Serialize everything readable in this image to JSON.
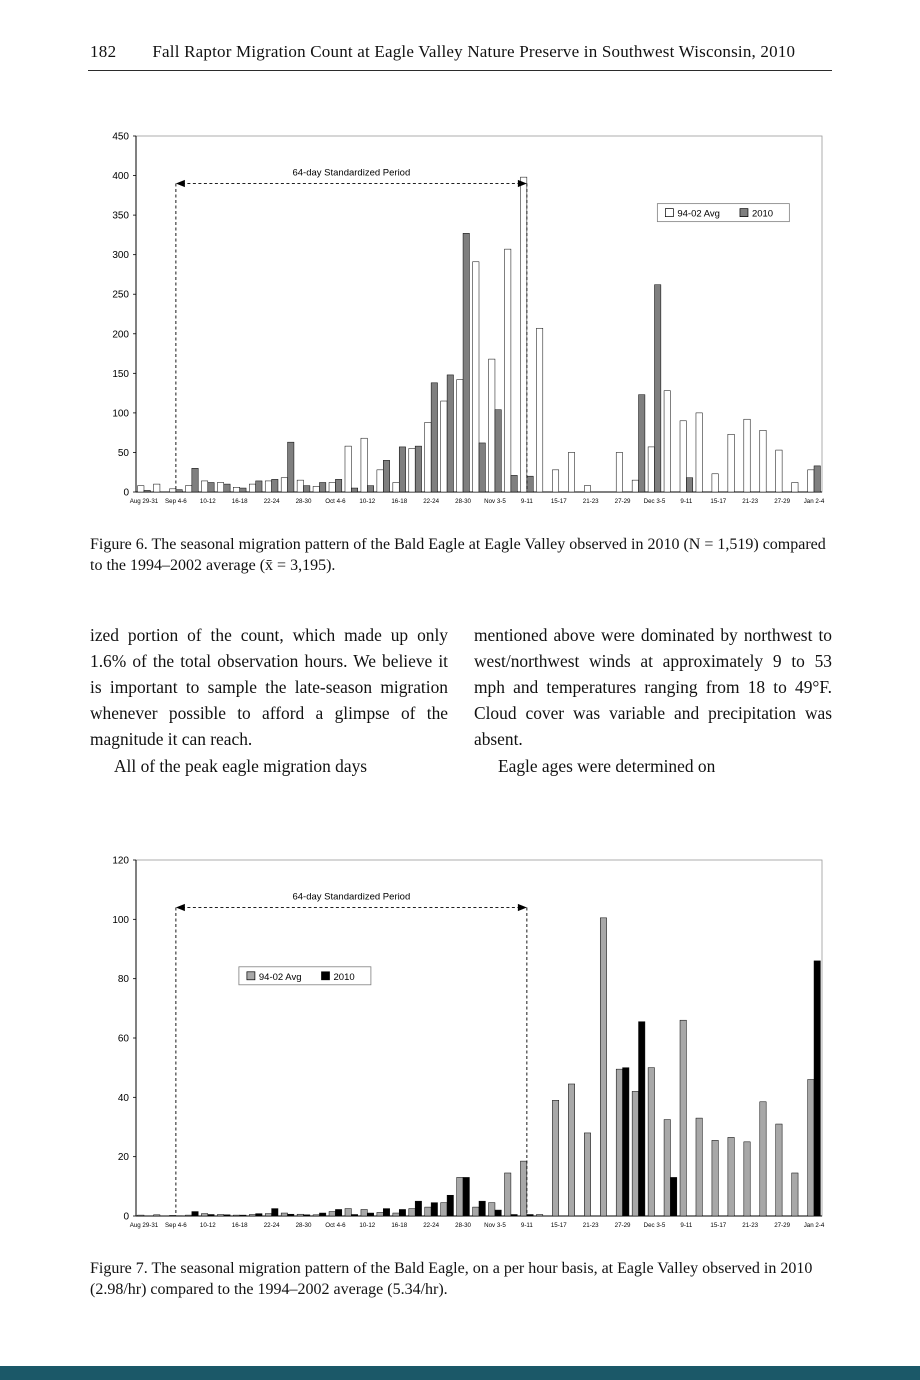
{
  "header": {
    "page_number": "182",
    "title": "Fall Raptor Migration Count at Eagle Valley Nature Preserve in Southwest Wisconsin, 2010"
  },
  "body": {
    "left_column": [
      "ized portion of the count, which made up only 1.6% of the total observation hours. We believe it is important to sample the late-season migration whenever possible to afford a glimpse of the magnitude it can reach.",
      "All of the peak eagle migration days"
    ],
    "right_column": [
      "mentioned above were dominated by northwest to west/northwest winds at approximately 9 to 53 mph and temperatures ranging from 18 to 49°F. Cloud cover was variable and precipitation was absent.",
      "Eagle ages were determined on"
    ]
  },
  "footer_bar_color": "#1b5868",
  "figures": [
    {
      "caption": "Figure 6. The seasonal migration pattern of the Bald Eagle at Eagle Valley observed in 2010 (N = 1,519) compared to the 1994–2002 average (x̄ = 3,195).",
      "chart_data": {
        "type": "bar",
        "title": "",
        "xlabel": "",
        "ylabel": "",
        "ylim": [
          0,
          450
        ],
        "ytick_step": 50,
        "grid": false,
        "annotation": "64-day Standardized Period",
        "annotation_y": 390,
        "annotation_span": [
          2,
          24
        ],
        "legend_position": "top-right",
        "legend_pos": {
          "x": 0.76,
          "y": 0.19
        },
        "categories": [
          "Aug 29-31",
          "",
          "Sep 4-6",
          "",
          "10-12",
          "",
          "16-18",
          "",
          "22-24",
          "",
          "28-30",
          "",
          "Oct 4-6",
          "",
          "10-12",
          "",
          "16-18",
          "",
          "22-24",
          "",
          "28-30",
          "",
          "Nov 3-5",
          "",
          "9-11",
          "",
          "15-17",
          "",
          "21-23",
          "",
          "27-29",
          "",
          "Dec 3-5",
          "",
          "9-11",
          "",
          "15-17",
          "",
          "21-23",
          "",
          "27-29",
          "",
          "Jan 2-4"
        ],
        "series": [
          {
            "name": "94-02 Avg",
            "color": "#ffffff",
            "values": [
              8,
              10,
              4,
              8,
              14,
              12,
              6,
              10,
              14,
              18,
              15,
              7,
              12,
              58,
              68,
              28,
              12,
              55,
              88,
              115,
              142,
              291,
              168,
              307,
              398,
              207,
              28,
              50,
              8,
              0,
              50,
              15,
              57,
              128,
              90,
              100,
              23,
              73,
              92,
              78,
              53,
              12,
              28
            ]
          },
          {
            "name": "2010",
            "color": "#7f7f7f",
            "values": [
              2,
              0,
              3,
              30,
              12,
              10,
              5,
              14,
              16,
              63,
              8,
              12,
              16,
              5,
              8,
              40,
              57,
              58,
              138,
              148,
              327,
              62,
              104,
              21,
              20,
              0,
              0,
              0,
              0,
              0,
              0,
              123,
              262,
              0,
              18,
              0,
              0,
              0,
              0,
              0,
              0,
              0,
              33
            ]
          }
        ]
      }
    },
    {
      "caption": "Figure 7. The seasonal migration pattern of the Bald Eagle, on a per hour basis, at Eagle Valley observed in 2010 (2.98/hr) compared to the 1994–2002 average (5.34/hr).",
      "chart_data": {
        "type": "bar",
        "title": "",
        "xlabel": "",
        "ylabel": "",
        "ylim": [
          0,
          120
        ],
        "ytick_step": 20,
        "grid": false,
        "annotation": "64-day Standardized Period",
        "annotation_y": 104,
        "annotation_span": [
          2,
          24
        ],
        "legend_position": "inside-left",
        "legend_pos": {
          "x": 0.15,
          "y": 0.3
        },
        "categories": [
          "Aug 29-31",
          "",
          "Sep 4-6",
          "",
          "10-12",
          "",
          "16-18",
          "",
          "22-24",
          "",
          "28-30",
          "",
          "Oct 4-6",
          "",
          "10-12",
          "",
          "16-18",
          "",
          "22-24",
          "",
          "28-30",
          "",
          "Nov 3-5",
          "",
          "9-11",
          "",
          "15-17",
          "",
          "21-23",
          "",
          "27-29",
          "",
          "Dec 3-5",
          "",
          "9-11",
          "",
          "15-17",
          "",
          "21-23",
          "",
          "27-29",
          "",
          "Jan 2-4"
        ],
        "series": [
          {
            "name": "94-02 Avg",
            "color": "#a8a8a8",
            "values": [
              0.3,
              0.4,
              0.2,
              0.3,
              0.8,
              0.5,
              0.3,
              0.5,
              0.8,
              1.0,
              0.6,
              0.4,
              1.5,
              2.5,
              2.2,
              1.2,
              1.0,
              2.5,
              3.0,
              4.5,
              13.0,
              3.0,
              4.5,
              14.5,
              18.5,
              0.5,
              39.0,
              44.5,
              28.0,
              100.5,
              49.5,
              42.0,
              50.0,
              32.5,
              66.0,
              33.0,
              25.5,
              26.5,
              25.0,
              38.5,
              31.0,
              14.5,
              46.0
            ]
          },
          {
            "name": "2010",
            "color": "#000000",
            "values": [
              0,
              0,
              0.1,
              1.5,
              0.5,
              0.4,
              0.3,
              0.8,
              2.5,
              0.6,
              0.4,
              1.0,
              2.2,
              0.5,
              1.0,
              2.5,
              2.2,
              5.0,
              4.5,
              7.0,
              13.0,
              5.0,
              2.0,
              0.5,
              0.5,
              0,
              0,
              0,
              0,
              0,
              50.0,
              65.5,
              0,
              13.0,
              0,
              0,
              0,
              0,
              0,
              0,
              0,
              0,
              86.0
            ]
          }
        ]
      }
    }
  ]
}
